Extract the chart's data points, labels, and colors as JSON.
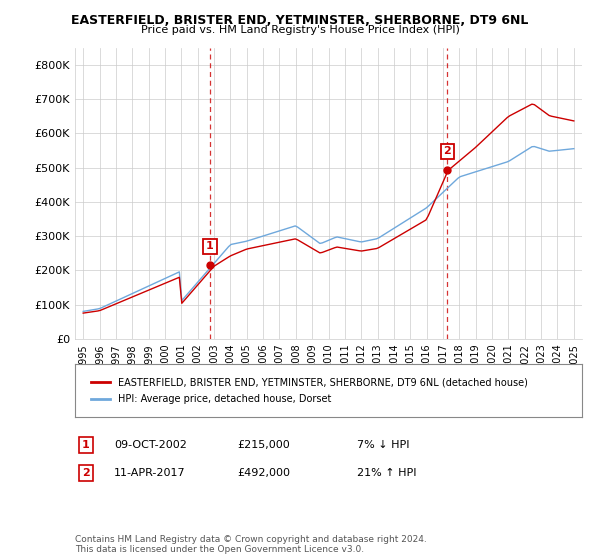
{
  "title": "EASTERFIELD, BRISTER END, YETMINSTER, SHERBORNE, DT9 6NL",
  "subtitle": "Price paid vs. HM Land Registry's House Price Index (HPI)",
  "legend_entry1": "EASTERFIELD, BRISTER END, YETMINSTER, SHERBORNE, DT9 6NL (detached house)",
  "legend_entry2": "HPI: Average price, detached house, Dorset",
  "transaction1_date": "09-OCT-2002",
  "transaction1_price": "£215,000",
  "transaction1_hpi": "7% ↓ HPI",
  "transaction2_date": "11-APR-2017",
  "transaction2_price": "£492,000",
  "transaction2_hpi": "21% ↑ HPI",
  "footer": "Contains HM Land Registry data © Crown copyright and database right 2024.\nThis data is licensed under the Open Government Licence v3.0.",
  "hpi_color": "#6fa8dc",
  "price_color": "#cc0000",
  "marker_color": "#cc0000",
  "ylim": [
    0,
    850000
  ],
  "yticks": [
    0,
    100000,
    200000,
    300000,
    400000,
    500000,
    600000,
    700000,
    800000
  ],
  "ytick_labels": [
    "£0",
    "£100K",
    "£200K",
    "£300K",
    "£400K",
    "£500K",
    "£600K",
    "£700K",
    "£800K"
  ],
  "background_color": "#ffffff",
  "grid_color": "#cccccc",
  "t1_x": 2002.75,
  "t1_y": 215000,
  "t2_x": 2017.27,
  "t2_y": 492000,
  "xmin": 1994.5,
  "xmax": 2025.5
}
